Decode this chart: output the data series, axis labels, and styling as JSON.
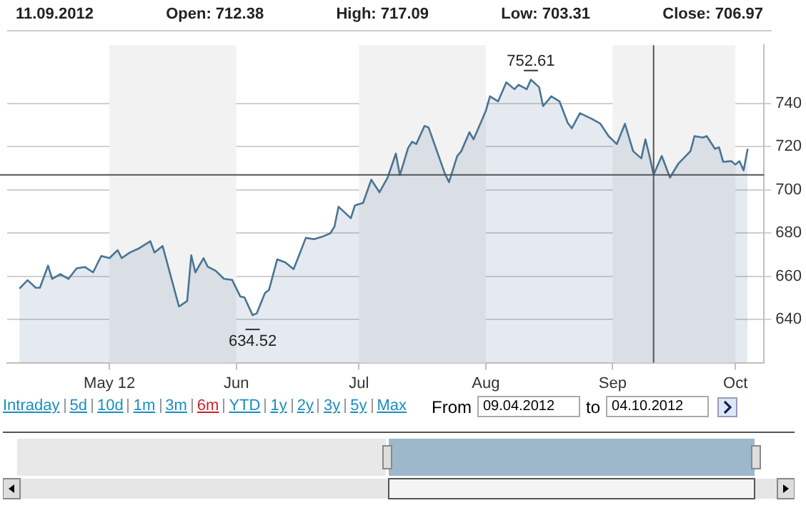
{
  "chart_data": {
    "type": "area",
    "title": "11.09.2012",
    "annotations": [
      "Open: 712.38",
      "High: 717.09",
      "Low: 703.31",
      "Close: 706.97",
      {
        "text": "752.61",
        "x": "2012-08-12",
        "y": 752.61
      },
      {
        "text": "634.52",
        "x": "2012-06-05",
        "y": 642
      },
      "Intraday",
      "5d",
      "10d",
      "1m",
      "3m",
      "6m",
      "YTD",
      "1y",
      "2y",
      "3y",
      "5y",
      "Max",
      "From",
      "09.04.2012",
      "to",
      "04.10.2012"
    ],
    "x": [
      "2012-04-09",
      "2012-04-11",
      "2012-04-13",
      "2012-04-14",
      "2012-04-16",
      "2012-04-17",
      "2012-04-19",
      "2012-04-21",
      "2012-04-23",
      "2012-04-25",
      "2012-04-27",
      "2012-04-29",
      "2012-05-01",
      "2012-05-03",
      "2012-05-04",
      "2012-05-06",
      "2012-05-08",
      "2012-05-11",
      "2012-05-12",
      "2012-05-14",
      "2012-05-18",
      "2012-05-20",
      "2012-05-21",
      "2012-05-22",
      "2012-05-24",
      "2012-05-25",
      "2012-05-27",
      "2012-05-29",
      "2012-05-31",
      "2012-06-02",
      "2012-06-03",
      "2012-06-05",
      "2012-06-06",
      "2012-06-08",
      "2012-06-09",
      "2012-06-11",
      "2012-06-13",
      "2012-06-15",
      "2012-06-16",
      "2012-06-18",
      "2012-06-20",
      "2012-06-22",
      "2012-06-24",
      "2012-06-25",
      "2012-06-26",
      "2012-06-29",
      "2012-06-30",
      "2012-07-02",
      "2012-07-04",
      "2012-07-06",
      "2012-07-08",
      "2012-07-10",
      "2012-07-11",
      "2012-07-13",
      "2012-07-14",
      "2012-07-15",
      "2012-07-17",
      "2012-07-18",
      "2012-07-22",
      "2012-07-23",
      "2012-07-25",
      "2012-07-26",
      "2012-07-28",
      "2012-07-29",
      "2012-07-31",
      "2012-08-01",
      "2012-08-02",
      "2012-08-04",
      "2012-08-06",
      "2012-08-08",
      "2012-08-09",
      "2012-08-11",
      "2012-08-12",
      "2012-08-14",
      "2012-08-15",
      "2012-08-17",
      "2012-08-19",
      "2012-08-21",
      "2012-08-22",
      "2012-08-24",
      "2012-08-27",
      "2012-08-29",
      "2012-08-31",
      "2012-09-02",
      "2012-09-04",
      "2012-09-06",
      "2012-09-08",
      "2012-09-09",
      "2012-09-10",
      "2012-09-11",
      "2012-09-13",
      "2012-09-15",
      "2012-09-17",
      "2012-09-20",
      "2012-09-21",
      "2012-09-23",
      "2012-09-24",
      "2012-09-26",
      "2012-09-27",
      "2012-09-28",
      "2012-09-30",
      "2012-10-01",
      "2012-10-02",
      "2012-10-03",
      "2012-10-04"
    ],
    "series": [
      {
        "color": "#4a7494",
        "values": [
          654.3,
          658.2,
          654.7,
          654.7,
          664.9,
          658.8,
          661,
          658.8,
          663.7,
          664.3,
          661.8,
          669.4,
          668.4,
          672.1,
          668.4,
          671,
          672.7,
          676.2,
          671,
          674,
          646,
          648.5,
          669.7,
          661.8,
          668.4,
          664.5,
          662.5,
          658.8,
          658.3,
          650.6,
          650.2,
          642,
          642.8,
          652.2,
          653.7,
          667.8,
          666.4,
          663.3,
          668,
          677.8,
          677.2,
          678.3,
          679.9,
          683,
          692.2,
          686.9,
          692.8,
          694,
          704.7,
          698.9,
          705.7,
          716.8,
          706.8,
          719.4,
          722.3,
          721.2,
          729.6,
          728.9,
          707.5,
          703.6,
          715.7,
          717.9,
          726.7,
          723.4,
          732.2,
          736.6,
          743.3,
          741,
          749.8,
          746.6,
          748.7,
          746.6,
          751,
          747.6,
          738.8,
          743.3,
          741,
          731.1,
          728.5,
          735.5,
          732.8,
          730.6,
          724.9,
          721.2,
          730.6,
          717.9,
          714.6,
          723.4,
          715.7,
          707,
          715.7,
          705.7,
          712,
          717.9,
          724.9,
          724.2,
          724.9,
          719,
          719.7,
          713,
          713.3,
          711.7,
          713.3,
          709,
          719
        ]
      }
    ],
    "xlim": [
      "2012-04-06",
      "2012-10-08"
    ],
    "xticks": [
      {
        "value": "2012-05-01",
        "label": "May 12"
      },
      {
        "value": "2012-06-01",
        "label": "Jun"
      },
      {
        "value": "2012-07-01",
        "label": "Jul"
      },
      {
        "value": "2012-08-01",
        "label": "Aug"
      },
      {
        "value": "2012-09-01",
        "label": "Sep"
      },
      {
        "value": "2012-10-01",
        "label": "Oct"
      }
    ],
    "ylim": [
      620,
      767
    ],
    "yticks": [
      640,
      660,
      680,
      700,
      720,
      740
    ],
    "grid": "y",
    "legend": false,
    "bands": [
      {
        "axis": "x",
        "from": "2012-05-01",
        "to": "2012-06-01",
        "color": "#f2f2f2"
      },
      {
        "axis": "x",
        "from": "2012-07-01",
        "to": "2012-08-01",
        "color": "#f2f2f2"
      },
      {
        "axis": "x",
        "from": "2012-09-01",
        "to": "2012-10-01",
        "color": "#f2f2f2"
      }
    ],
    "ref_lines": [
      {
        "axis": "x",
        "value": "2012-09-11",
        "color": "#555555"
      },
      {
        "axis": "y",
        "value": 706.97,
        "color": "#555555"
      }
    ]
  }
}
